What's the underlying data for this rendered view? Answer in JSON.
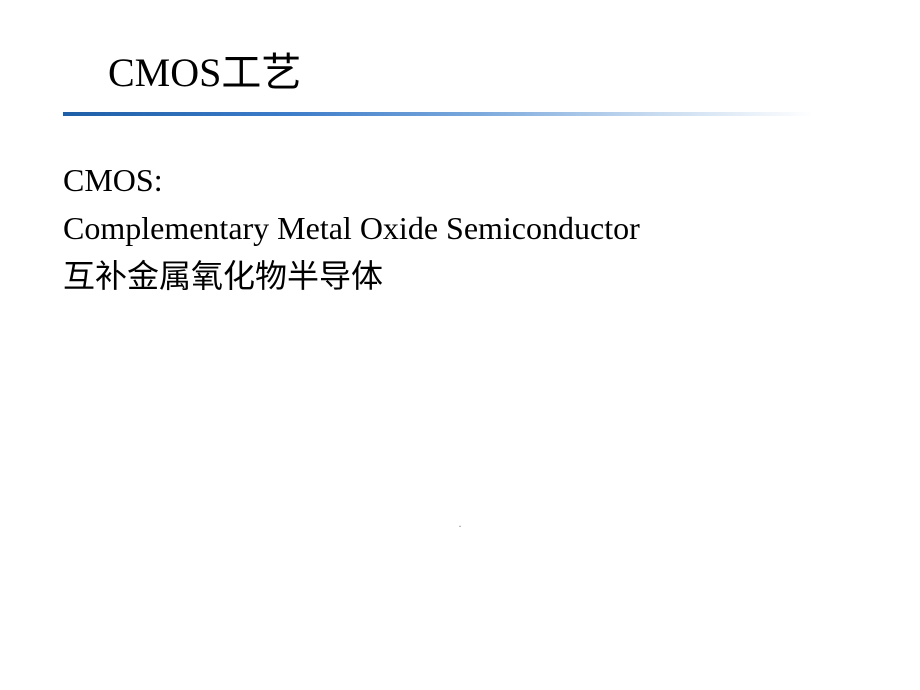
{
  "slide": {
    "title": "CMOS工艺",
    "content": {
      "line1": "CMOS:",
      "line2": "Complementary Metal Oxide Semiconductor",
      "line3": "互补金属氧化物半导体"
    },
    "page_indicator": "."
  },
  "styles": {
    "title_fontsize": 40,
    "content_fontsize": 32,
    "title_color": "#000000",
    "content_color": "#000000",
    "background_color": "#ffffff",
    "underline_gradient_start": "#1f5fa8",
    "underline_gradient_end": "#ffffff",
    "page_indicator_color": "#8c8c8c"
  }
}
